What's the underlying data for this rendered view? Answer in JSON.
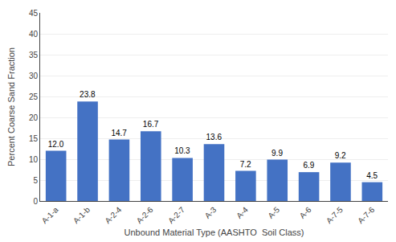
{
  "chart_data": {
    "type": "bar",
    "categories": [
      "A-1-a",
      "A-1-b",
      "A-2-4",
      "A-2-6",
      "A-2-7",
      "A-3",
      "A-4",
      "A-5",
      "A-6",
      "A-7-5",
      "A-7-6"
    ],
    "values": [
      12.0,
      23.8,
      14.7,
      16.7,
      10.3,
      13.6,
      7.2,
      9.9,
      6.9,
      9.2,
      4.5
    ],
    "value_labels": [
      "12.0",
      "23.8",
      "14.7",
      "16.7",
      "10.3",
      "13.6",
      "7.2",
      "9.9",
      "6.9",
      "9.2",
      "4.5"
    ],
    "data_labels": true,
    "color": "#4472C4",
    "xlabel": "Unbound Material Type (AASHTO  Soil Class)",
    "ylabel": "Percent Coarse Sand Fraction",
    "ylim": [
      0,
      45
    ],
    "yticks": [
      0,
      5,
      10,
      15,
      20,
      25,
      30,
      35,
      40,
      45
    ],
    "grid": true
  }
}
